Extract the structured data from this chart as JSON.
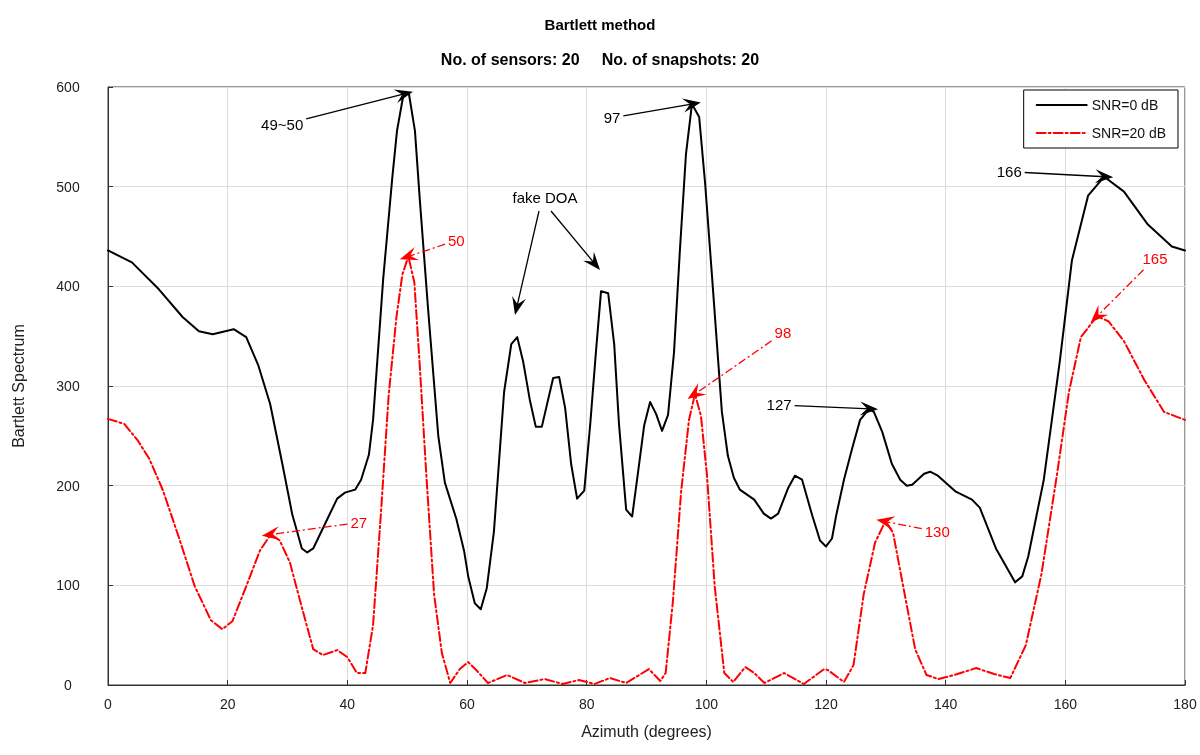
{
  "chart_data": {
    "type": "line",
    "title": "Bartlett method",
    "subtitle": "No. of sensors: 20     No. of snapshots: 20",
    "xlabel": "Azimuth (degrees)",
    "ylabel": "Bartlett Spectrum",
    "xlim": [
      0,
      180
    ],
    "xticks": [
      0,
      20,
      40,
      60,
      80,
      100,
      120,
      140,
      160,
      180
    ],
    "ylim": [
      0,
      600
    ],
    "yticks": [
      0,
      100,
      200,
      300,
      400,
      500,
      600
    ],
    "grid": true,
    "legend": "top right",
    "marker": "none",
    "series": [
      {
        "name": "SNR=0 dB",
        "color": "#000000",
        "line_style": "solid",
        "x": [
          0,
          4,
          8.5,
          12.5,
          15.2,
          17.5,
          21,
          23.1,
          25.1,
          27.1,
          29.1,
          30.8,
          32.4,
          33.3,
          34.3,
          36.3,
          38.3,
          39.6,
          41.3,
          42.3,
          43.6,
          44.3,
          46,
          47.5,
          48.3,
          49.4,
          50.3,
          51.3,
          52.1,
          53.5,
          55.2,
          56.3,
          58.2,
          59.5,
          60.2,
          61.3,
          62.3,
          63.3,
          64.5,
          66.2,
          67.4,
          68.4,
          69.4,
          70.5,
          71.5,
          72.5,
          74.4,
          75.4,
          76.4,
          77.4,
          78.4,
          79.6,
          80.6,
          81.6,
          82.4,
          83.6,
          84.6,
          85.4,
          86.6,
          87.6,
          88.6,
          89.6,
          90.6,
          91.6,
          92.6,
          93.6,
          94.6,
          95.6,
          96.6,
          97.6,
          98.8,
          99.8,
          101,
          102.6,
          103.6,
          104.6,
          105.6,
          108,
          109.6,
          110.8,
          112,
          113.7,
          114.8,
          116,
          117.7,
          119,
          120,
          121,
          121.7,
          123,
          124.4,
          125.7,
          127.2,
          128,
          129.4,
          131,
          132.4,
          133.5,
          134.4,
          136.4,
          137.4,
          138.7,
          141.7,
          144.4,
          145.7,
          148.4,
          151.6,
          152.8,
          153.8,
          156.4,
          159.1,
          161.1,
          163.8,
          166.5,
          169.8,
          173.8,
          177.8,
          180
        ],
        "values": [
          436,
          424,
          397,
          369,
          355,
          352,
          357,
          349,
          321,
          282,
          223,
          171,
          137,
          133,
          137,
          162,
          187,
          193,
          196,
          206,
          231,
          266,
          408,
          508,
          556,
          593,
          593,
          556,
          488,
          377,
          250,
          203,
          167,
          135,
          109,
          82,
          76,
          97,
          154,
          294,
          342,
          349,
          324,
          286,
          259,
          259,
          308,
          309,
          278,
          222,
          187,
          195,
          262,
          338,
          395,
          393,
          342,
          262,
          176,
          169,
          214,
          260,
          284,
          272,
          255,
          271,
          334,
          438,
          533,
          583,
          570,
          503,
          406,
          274,
          230,
          208,
          196,
          186,
          172,
          167,
          172,
          198,
          210,
          206,
          170,
          145,
          139,
          147,
          170,
          206,
          238,
          266,
          277,
          274,
          254,
          222,
          206,
          200,
          201,
          212,
          214,
          210,
          194,
          186,
          178,
          137,
          103,
          109,
          129,
          206,
          326,
          426,
          491,
          510,
          495,
          462,
          440,
          436
        ]
      },
      {
        "name": "SNR=20 dB",
        "color": "#ff0000",
        "line_style": "dashdot",
        "x": [
          0,
          2.7,
          4.9,
          6.9,
          9.2,
          11.9,
          14.5,
          17.2,
          19.1,
          20.8,
          23.1,
          25.4,
          27.2,
          28.7,
          30.4,
          32.3,
          34.3,
          35.9,
          38.3,
          40,
          41.6,
          43,
          44.3,
          45.6,
          46.9,
          48.2,
          49.2,
          50.2,
          51.2,
          52.1,
          53.2,
          54.5,
          55.8,
          57.2,
          58.8,
          60.2,
          61.7,
          63.5,
          66.7,
          69.7,
          73,
          76,
          78.7,
          81.3,
          83.9,
          86.6,
          90.4,
          92.3,
          93.2,
          94.4,
          95.8,
          97.1,
          98.1,
          99.1,
          100.1,
          101.4,
          103,
          104.5,
          106.5,
          108,
          109.7,
          113,
          116.3,
          119.7,
          120.3,
          123,
          124.6,
          126.3,
          128.2,
          129.9,
          131.2,
          132.9,
          134.9,
          136.8,
          138.8,
          141.4,
          145.1,
          148.1,
          150.8,
          153.4,
          156,
          158.6,
          160.6,
          162.6,
          165.3,
          167.2,
          169.8,
          173.2,
          176.5,
          180
        ],
        "values": [
          267,
          262,
          246,
          227,
          195,
          147,
          99,
          65,
          56,
          64,
          99,
          135,
          151,
          145,
          123,
          80,
          36,
          30,
          35,
          28,
          12,
          12,
          60,
          171,
          290,
          369,
          412,
          430,
          404,
          321,
          211,
          91,
          32,
          2,
          16,
          23,
          14,
          2,
          10,
          2,
          6,
          1,
          5,
          1,
          7,
          2,
          16,
          4,
          12,
          83,
          195,
          266,
          292,
          270,
          211,
          99,
          12,
          3,
          18,
          12,
          2,
          12,
          1,
          16,
          15,
          3,
          20,
          91,
          143,
          164,
          153,
          99,
          36,
          10,
          6,
          10,
          17,
          11,
          7,
          40,
          111,
          211,
          294,
          349,
          370,
          365,
          345,
          306,
          274,
          266
        ]
      }
    ],
    "annotations": [
      {
        "text": "49~50",
        "x": 49.5,
        "y": 593
      },
      {
        "text": "50",
        "x": 50.2,
        "y": 430
      },
      "fake DOA",
      {
        "text": "97",
        "x": 97.6,
        "y": 583
      },
      {
        "text": "98",
        "x": 98.1,
        "y": 292
      },
      {
        "text": "27",
        "x": 27.2,
        "y": 151
      },
      {
        "text": "127",
        "x": 127.2,
        "y": 277
      },
      {
        "text": "130",
        "x": 129.9,
        "y": 164
      },
      {
        "text": "166",
        "x": 166.5,
        "y": 510
      },
      {
        "text": "165",
        "x": 165.3,
        "y": 370
      }
    ]
  }
}
